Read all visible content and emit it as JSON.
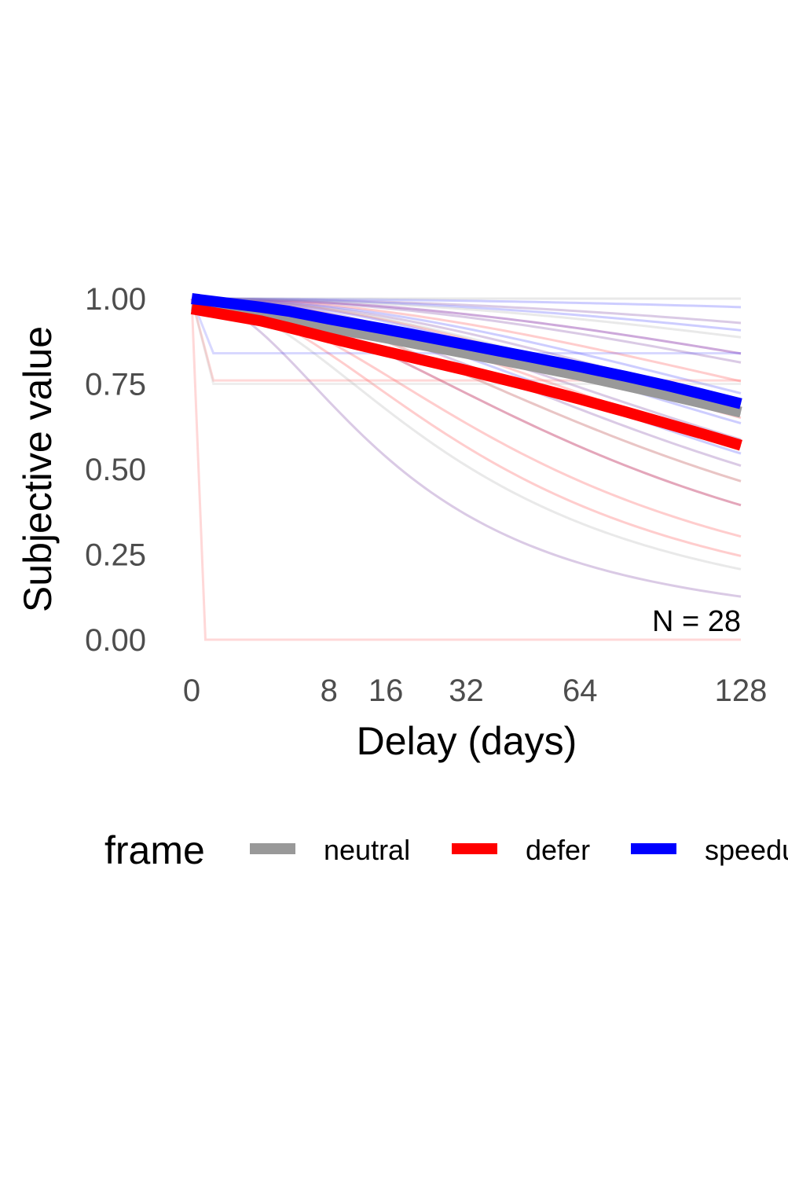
{
  "chart_data": {
    "type": "line",
    "xlabel": "Delay (days)",
    "ylabel": "Subjective value",
    "x_ticks": [
      0,
      8,
      16,
      32,
      64,
      128
    ],
    "x_tick_labels": [
      "0",
      "8",
      "16",
      "32",
      "64",
      "128"
    ],
    "y_ticks": [
      0,
      0.25,
      0.5,
      0.75,
      1.0
    ],
    "y_tick_labels": [
      "0.00",
      "0.25",
      "0.50",
      "0.75",
      "1.00"
    ],
    "xlim": [
      0,
      128
    ],
    "ylim": [
      0,
      1
    ],
    "x_scale": "sqrt",
    "grid": false,
    "annotation": "N = 28",
    "legend": {
      "title": "frame",
      "position": "bottom",
      "entries": [
        {
          "label": "neutral",
          "color": "#999999"
        },
        {
          "label": "defer",
          "color": "#ff0000"
        },
        {
          "label": "speedup",
          "color": "#0000ff"
        }
      ]
    },
    "series": [
      {
        "name": "neutral",
        "color": "#999999",
        "x": [
          0,
          2,
          4,
          8,
          16,
          32,
          48,
          64,
          80,
          96,
          112,
          128
        ],
        "y": [
          0.98,
          0.955,
          0.94,
          0.915,
          0.885,
          0.84,
          0.805,
          0.775,
          0.745,
          0.718,
          0.692,
          0.667
        ]
      },
      {
        "name": "defer",
        "color": "#ff0000",
        "x": [
          0,
          2,
          4,
          8,
          16,
          32,
          48,
          64,
          80,
          96,
          112,
          128
        ],
        "y": [
          0.97,
          0.935,
          0.915,
          0.885,
          0.845,
          0.79,
          0.745,
          0.705,
          0.668,
          0.633,
          0.601,
          0.57
        ]
      },
      {
        "name": "speedup",
        "color": "#0000ff",
        "x": [
          0,
          2,
          4,
          8,
          16,
          32,
          48,
          64,
          80,
          96,
          112,
          128
        ],
        "y": [
          1.0,
          0.975,
          0.963,
          0.94,
          0.91,
          0.865,
          0.83,
          0.8,
          0.772,
          0.745,
          0.718,
          0.692
        ]
      }
    ],
    "individual_curves": [
      {
        "color": "#7b3fa0",
        "k": 0.054
      },
      {
        "color": "#7b3fa0",
        "k": 0.012
      },
      {
        "color": "#7b3fa0",
        "k": 0.0075
      },
      {
        "color": "#7b3fa0",
        "k": 0.0055
      },
      {
        "color": "#7b3fa0",
        "k": 0.0035
      },
      {
        "color": "#7b3fa0",
        "k": 0.0018
      },
      {
        "color": "#7b3fa0",
        "k": 0.0006
      },
      {
        "color": "#ff4d4d",
        "k": 0.024
      },
      {
        "color": "#ff4d4d",
        "k": 0.018
      },
      {
        "color": "#ff4d4d",
        "k": 0.012
      },
      {
        "color": "#ff4d4d",
        "k": 0.009
      },
      {
        "color": "#ff4d4d",
        "k": 0.006
      },
      {
        "color": "#ff4d4d",
        "k": 0.0042
      },
      {
        "color": "#ff4d4d",
        "k": 0.0025
      },
      {
        "color": "#ff4d4d",
        "k": 0.0015
      },
      {
        "color": "#4d4dff",
        "k": 0.0065
      },
      {
        "color": "#4d4dff",
        "k": 0.0045
      },
      {
        "color": "#4d4dff",
        "k": 0.003
      },
      {
        "color": "#4d4dff",
        "k": 0.0015
      },
      {
        "color": "#4d4dff",
        "k": 0.0008
      },
      {
        "color": "#4d4dff",
        "k": 0.0002
      },
      {
        "color": "#b0b0b0",
        "k": 0.03
      },
      {
        "color": "#b0b0b0",
        "k": 0.009
      },
      {
        "color": "#b0b0b0",
        "k": 0.004
      },
      {
        "color": "#b0b0b0",
        "k": 0.001
      },
      {
        "color": "#b0b0b0",
        "k": 0.0
      }
    ],
    "flat_curves": [
      {
        "color": "#ff4d4d",
        "y": 0.76
      },
      {
        "color": "#b0b0b0",
        "y": 0.75
      },
      {
        "color": "#4d4dff",
        "y": 0.84
      }
    ],
    "step_curves": [
      {
        "color": "#ff4d4d",
        "y_before": 1.0,
        "y_after": 0.0
      }
    ]
  }
}
